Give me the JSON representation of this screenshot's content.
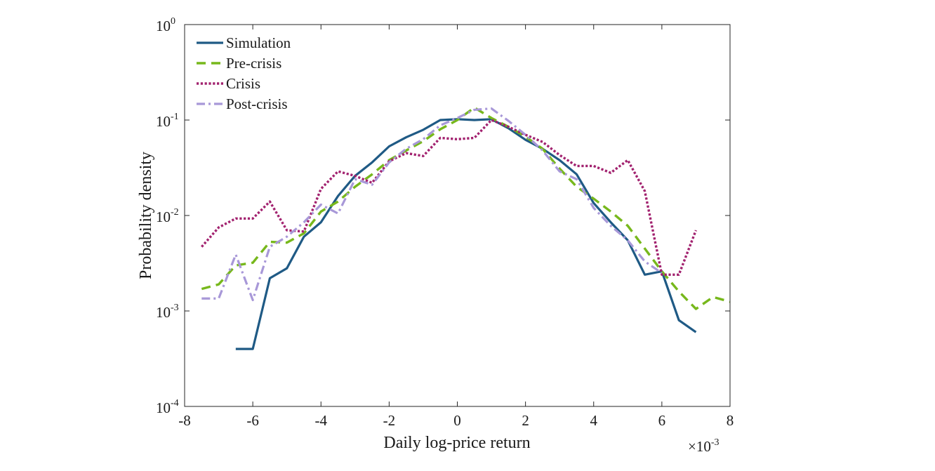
{
  "chart_data": {
    "type": "line",
    "title": "",
    "xlabel": "Daily log-price return",
    "ylabel": "Probability density",
    "x_multiplier_label": "×10",
    "x_multiplier_exponent": "-3",
    "xlim": [
      -8,
      8
    ],
    "ylim": [
      0.0001,
      1
    ],
    "y_scale": "log",
    "grid": false,
    "legend_position": "top-left",
    "x_ticks": [
      -8,
      -6,
      -4,
      -2,
      0,
      2,
      4,
      6,
      8
    ],
    "x_tick_labels": [
      "-8",
      "-6",
      "-4",
      "-2",
      "0",
      "2",
      "4",
      "6",
      "8"
    ],
    "y_ticks": [
      0.0001,
      0.001,
      0.01,
      0.1,
      1
    ],
    "y_tick_labels": [
      {
        "base": "10",
        "exp": "-4"
      },
      {
        "base": "10",
        "exp": "-3"
      },
      {
        "base": "10",
        "exp": "-2"
      },
      {
        "base": "10",
        "exp": "-1"
      },
      {
        "base": "10",
        "exp": "0"
      }
    ],
    "series": [
      {
        "name": "Simulation",
        "color": "#1f5a85",
        "style": "solid",
        "points": [
          [
            -6.5,
            0.0004
          ],
          [
            -6.0,
            0.0004
          ],
          [
            -5.5,
            0.0022
          ],
          [
            -5.0,
            0.0028
          ],
          [
            -4.5,
            0.006
          ],
          [
            -4.0,
            0.0085
          ],
          [
            -3.5,
            0.016
          ],
          [
            -3.0,
            0.026
          ],
          [
            -2.5,
            0.036
          ],
          [
            -2.0,
            0.053
          ],
          [
            -1.5,
            0.066
          ],
          [
            -1.0,
            0.079
          ],
          [
            -0.5,
            0.1
          ],
          [
            0.0,
            0.102
          ],
          [
            0.5,
            0.1
          ],
          [
            1.0,
            0.102
          ],
          [
            1.5,
            0.082
          ],
          [
            2.0,
            0.062
          ],
          [
            2.5,
            0.05
          ],
          [
            3.0,
            0.038
          ],
          [
            3.5,
            0.027
          ],
          [
            4.0,
            0.0135
          ],
          [
            4.5,
            0.0085
          ],
          [
            5.0,
            0.0055
          ],
          [
            5.5,
            0.0024
          ],
          [
            6.0,
            0.0026
          ],
          [
            6.5,
            0.0008
          ],
          [
            7.0,
            0.0006
          ]
        ]
      },
      {
        "name": "Pre-crisis",
        "color": "#77b81c",
        "style": "dashed",
        "points": [
          [
            -7.5,
            0.0017
          ],
          [
            -7.0,
            0.0019
          ],
          [
            -6.5,
            0.003
          ],
          [
            -6.0,
            0.0032
          ],
          [
            -5.5,
            0.0053
          ],
          [
            -5.0,
            0.0052
          ],
          [
            -4.5,
            0.0065
          ],
          [
            -4.0,
            0.011
          ],
          [
            -3.5,
            0.014
          ],
          [
            -3.0,
            0.02
          ],
          [
            -2.5,
            0.027
          ],
          [
            -2.0,
            0.038
          ],
          [
            -1.5,
            0.048
          ],
          [
            -1.0,
            0.06
          ],
          [
            -0.5,
            0.08
          ],
          [
            0.0,
            0.1
          ],
          [
            0.5,
            0.135
          ],
          [
            1.0,
            0.105
          ],
          [
            1.5,
            0.085
          ],
          [
            2.0,
            0.067
          ],
          [
            2.5,
            0.05
          ],
          [
            3.0,
            0.031
          ],
          [
            3.5,
            0.02
          ],
          [
            4.0,
            0.015
          ],
          [
            4.5,
            0.011
          ],
          [
            5.0,
            0.0078
          ],
          [
            5.5,
            0.0045
          ],
          [
            6.0,
            0.0026
          ],
          [
            6.5,
            0.0016
          ],
          [
            7.0,
            0.00105
          ],
          [
            7.5,
            0.0014
          ],
          [
            8.0,
            0.00125
          ]
        ]
      },
      {
        "name": "Crisis",
        "color": "#a2226f",
        "style": "dotted",
        "points": [
          [
            -7.5,
            0.0047
          ],
          [
            -7.0,
            0.0075
          ],
          [
            -6.5,
            0.0093
          ],
          [
            -6.0,
            0.0093
          ],
          [
            -5.5,
            0.014
          ],
          [
            -5.0,
            0.007
          ],
          [
            -4.5,
            0.0068
          ],
          [
            -4.0,
            0.019
          ],
          [
            -3.5,
            0.029
          ],
          [
            -3.0,
            0.026
          ],
          [
            -2.5,
            0.022
          ],
          [
            -2.0,
            0.037
          ],
          [
            -1.5,
            0.045
          ],
          [
            -1.0,
            0.042
          ],
          [
            -0.5,
            0.065
          ],
          [
            0.0,
            0.063
          ],
          [
            0.5,
            0.065
          ],
          [
            1.0,
            0.1
          ],
          [
            1.5,
            0.085
          ],
          [
            2.0,
            0.07
          ],
          [
            2.5,
            0.059
          ],
          [
            3.0,
            0.043
          ],
          [
            3.5,
            0.033
          ],
          [
            4.0,
            0.033
          ],
          [
            4.5,
            0.028
          ],
          [
            5.0,
            0.038
          ],
          [
            5.5,
            0.018
          ],
          [
            6.0,
            0.0024
          ],
          [
            6.5,
            0.0024
          ],
          [
            7.0,
            0.007
          ]
        ]
      },
      {
        "name": "Post-crisis",
        "color": "#a898d8",
        "style": "dashdot",
        "points": [
          [
            -7.5,
            0.00135
          ],
          [
            -7.0,
            0.00135
          ],
          [
            -6.5,
            0.0039
          ],
          [
            -6.0,
            0.0013
          ],
          [
            -5.5,
            0.0047
          ],
          [
            -5.0,
            0.006
          ],
          [
            -4.5,
            0.0085
          ],
          [
            -4.0,
            0.013
          ],
          [
            -3.5,
            0.0105
          ],
          [
            -3.0,
            0.024
          ],
          [
            -2.5,
            0.021
          ],
          [
            -2.0,
            0.036
          ],
          [
            -1.5,
            0.05
          ],
          [
            -1.0,
            0.063
          ],
          [
            -0.5,
            0.088
          ],
          [
            0.0,
            0.105
          ],
          [
            0.5,
            0.128
          ],
          [
            1.0,
            0.132
          ],
          [
            1.5,
            0.098
          ],
          [
            2.0,
            0.07
          ],
          [
            2.5,
            0.048
          ],
          [
            3.0,
            0.029
          ],
          [
            3.5,
            0.024
          ],
          [
            4.0,
            0.012
          ],
          [
            4.5,
            0.0078
          ],
          [
            5.0,
            0.0055
          ],
          [
            5.5,
            0.0033
          ],
          [
            6.0,
            0.0025
          ]
        ]
      }
    ]
  }
}
